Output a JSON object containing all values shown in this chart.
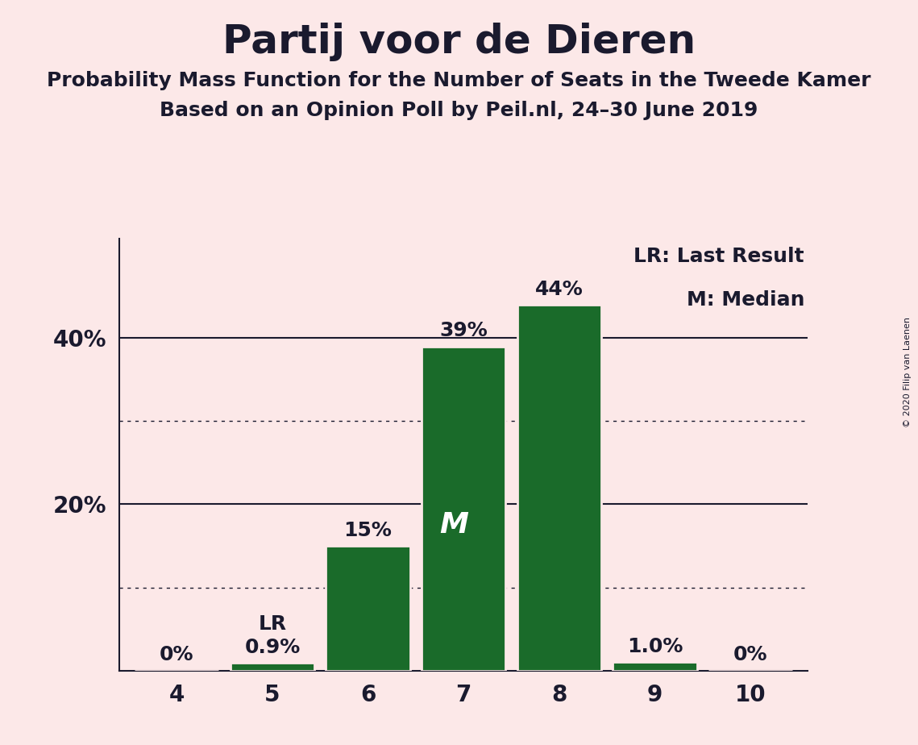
{
  "title": "Partij voor de Dieren",
  "subtitle1": "Probability Mass Function for the Number of Seats in the Tweede Kamer",
  "subtitle2": "Based on an Opinion Poll by Peil.nl, 24–30 June 2019",
  "copyright": "© 2020 Filip van Laenen",
  "categories": [
    4,
    5,
    6,
    7,
    8,
    9,
    10
  ],
  "values": [
    0.0,
    0.9,
    15.0,
    39.0,
    44.0,
    1.0,
    0.0
  ],
  "bar_color": "#1a6b2a",
  "bar_edge_color": "#fce8e8",
  "background_color": "#fce8e8",
  "label_texts": [
    "0%",
    "0.9%",
    "15%",
    "39%",
    "44%",
    "1.0%",
    "0%"
  ],
  "median_bar": 7,
  "lr_bar": 5,
  "lr_label": "LR",
  "median_label": "M",
  "legend_lr": "LR: Last Result",
  "legend_m": "M: Median",
  "solid_yticks": [
    0,
    20,
    40
  ],
  "dotted_yticks": [
    10,
    30
  ],
  "ylim": [
    0,
    52
  ],
  "title_fontsize": 36,
  "subtitle_fontsize": 18,
  "label_fontsize": 18,
  "tick_fontsize": 20,
  "legend_fontsize": 18,
  "median_label_fontsize": 26,
  "lr_label_fontsize": 18
}
